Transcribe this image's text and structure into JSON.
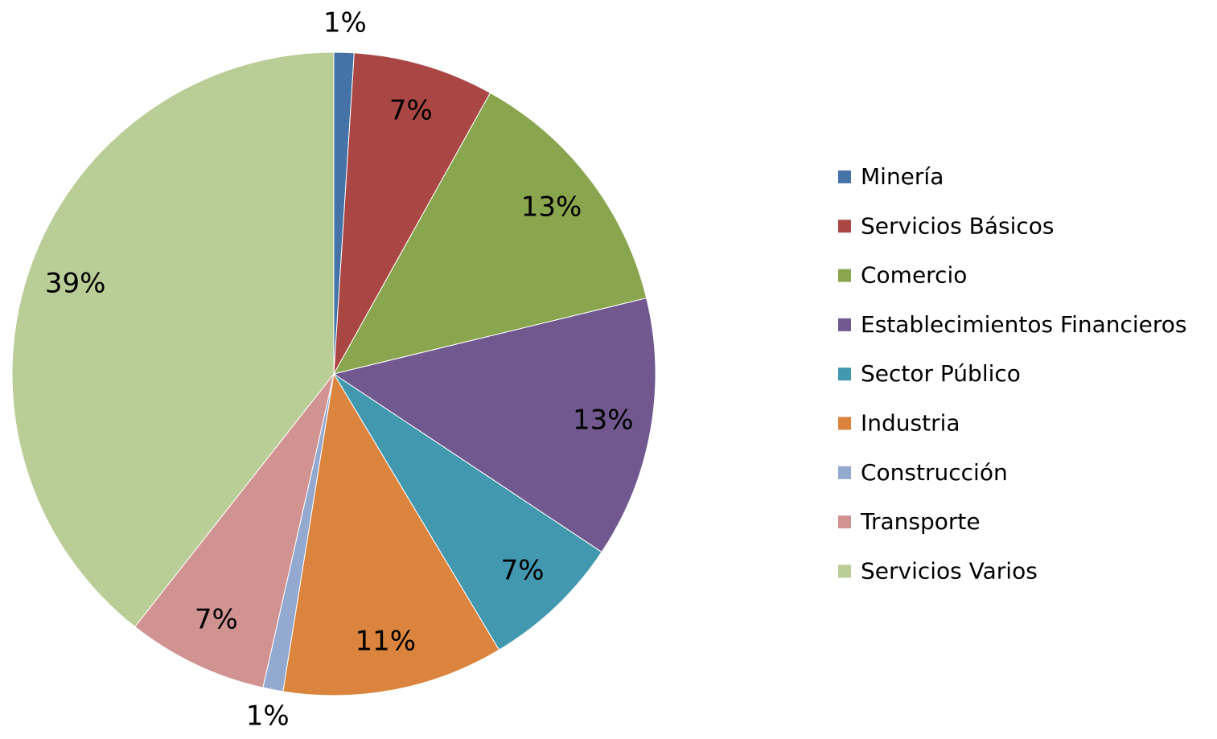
{
  "chart_data": {
    "type": "pie",
    "categories": [
      "Minería",
      "Servicios Básicos",
      "Comercio",
      "Establecimientos Financieros",
      "Sector Público",
      "Industria",
      "Construcción",
      "Transporte",
      "Servicios Varios"
    ],
    "values": [
      1,
      7,
      13,
      13,
      7,
      11,
      1,
      7,
      39
    ],
    "value_labels": [
      "1%",
      "7%",
      "13%",
      "13%",
      "7%",
      "11%",
      "1%",
      "7%",
      "39%"
    ],
    "colors": [
      "#4572a7",
      "#aa4643",
      "#89a54e",
      "#71588f",
      "#4198af",
      "#db843d",
      "#93a9cf",
      "#d19392",
      "#b9cd96"
    ],
    "legend": "right"
  }
}
